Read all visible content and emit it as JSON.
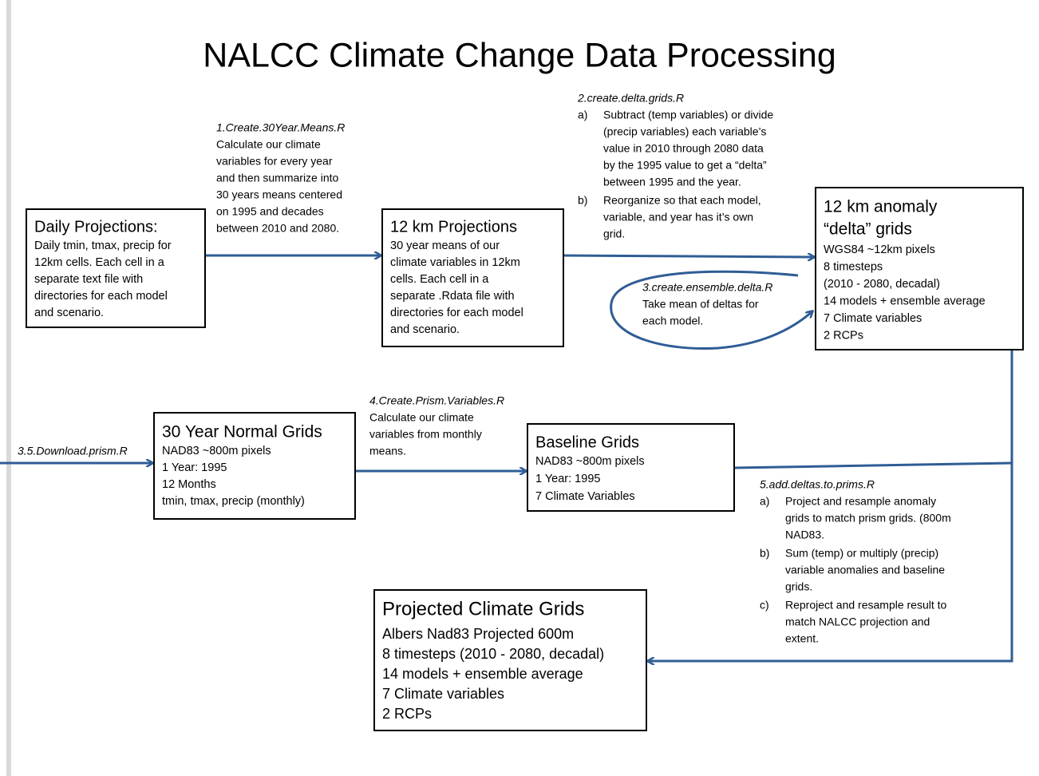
{
  "title": "NALCC Climate Change Data Processing",
  "nodes": [
    {
      "title": [
        "Daily Projections:"
      ],
      "lines": [
        "Daily tmin, tmax, precip for",
        "12km cells.  Each cell in a",
        "separate text file with",
        "directories for each model",
        "and scenario."
      ]
    },
    {
      "title": [
        "12 km Projections"
      ],
      "lines": [
        "30 year means of our",
        "climate variables in 12km",
        "cells.  Each cell in a",
        "separate .Rdata file with",
        "directories for each model",
        "and scenario."
      ]
    },
    {
      "title": [
        "12 km anomaly",
        "“delta”  grids"
      ],
      "lines": [
        "WGS84 ~12km pixels",
        "8 timesteps",
        " (2010 - 2080, decadal)",
        "14 models + ensemble average",
        "7 Climate variables",
        "2 RCPs"
      ]
    },
    {
      "title": [
        "30 Year Normal Grids"
      ],
      "lines": [
        "NAD83 ~800m pixels",
        "1 Year: 1995",
        "12 Months",
        " tmin, tmax, precip (monthly)"
      ]
    },
    {
      "title": [
        "Baseline Grids"
      ],
      "lines": [
        "NAD83 ~800m pixels",
        "1 Year: 1995",
        "7 Climate Variables"
      ]
    },
    {
      "title": [
        "Projected Climate Grids"
      ],
      "lines": [
        "Albers Nad83 Projected 600m",
        "8 timesteps (2010 - 2080, decadal)",
        "14 models + ensemble average",
        "7 Climate variables",
        "2 RCPs"
      ]
    }
  ],
  "steps": [
    {
      "script": "1.Create.30Year.Means.R",
      "lines": [
        "Calculate our climate",
        "variables for every year",
        "and then summarize into",
        "30 years means centered",
        "on  1995 and decades",
        "between 2010 and 2080."
      ]
    },
    {
      "script": "2.create.delta.grids.R",
      "items": [
        {
          "marker": "a)",
          "lines": [
            "Subtract (temp variables) or divide",
            "(precip variables) each variable’s",
            "value in 2010 through 2080 data",
            "by the 1995  value to get a “delta”",
            "between 1995 and the year."
          ]
        },
        {
          "marker": "b)",
          "lines": [
            "Reorganize so that each model,",
            "variable, and year has it’s own",
            "grid."
          ]
        }
      ]
    },
    {
      "script": "3.create.ensemble.delta.R",
      "lines": [
        "Take mean of deltas for",
        "each model."
      ]
    },
    {
      "script": "3.5.Download.prism.R",
      "lines": []
    },
    {
      "script": "4.Create.Prism.Variables.R",
      "lines": [
        "Calculate our climate",
        "variables from monthly",
        "means."
      ]
    },
    {
      "script": "5.add.deltas.to.prims.R",
      "items": [
        {
          "marker": "a)",
          "lines": [
            "Project and resample anomaly",
            "grids to match prism grids. (800m",
            "NAD83."
          ]
        },
        {
          "marker": "b)",
          "lines": [
            "Sum (temp) or multiply (precip)",
            "variable anomalies and baseline",
            "grids."
          ]
        },
        {
          "marker": "c)",
          "lines": [
            "Reproject and resample result to",
            "match NALCC projection and",
            "extent."
          ]
        }
      ]
    }
  ]
}
